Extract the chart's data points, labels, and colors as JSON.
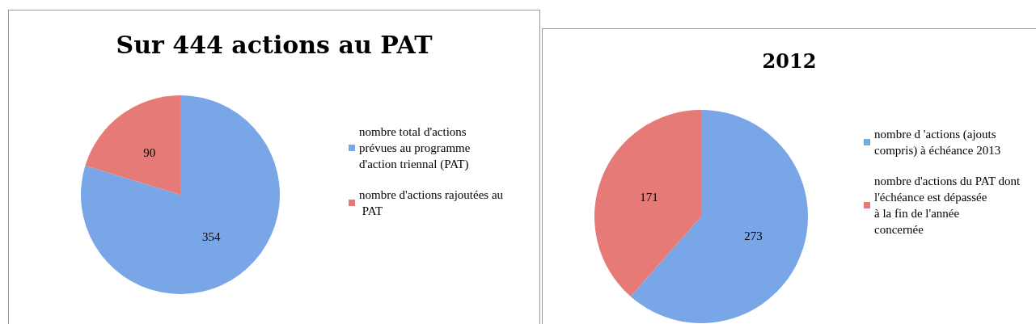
{
  "chart_data": [
    {
      "type": "pie",
      "title": "Sur 444 actions au PAT",
      "categories": [
        "nombre total d'actions prévues au programme d'action triennal (PAT)",
        "nombre d'actions rajoutées au PAT"
      ],
      "values": [
        354,
        90
      ],
      "colors": [
        "#78a6e6",
        "#e57a76"
      ],
      "data_labels": true,
      "legend": "right"
    },
    {
      "type": "pie",
      "title": "2012",
      "categories": [
        "nombre d 'actions (ajouts compris) à échéance 2013",
        "nombre d'actions du PAT dont l'échéance est dépassée à la fin de l'année concernée"
      ],
      "values": [
        273,
        171
      ],
      "colors": [
        "#78a6e6",
        "#e57a76"
      ],
      "data_labels": true,
      "legend": "right"
    }
  ]
}
